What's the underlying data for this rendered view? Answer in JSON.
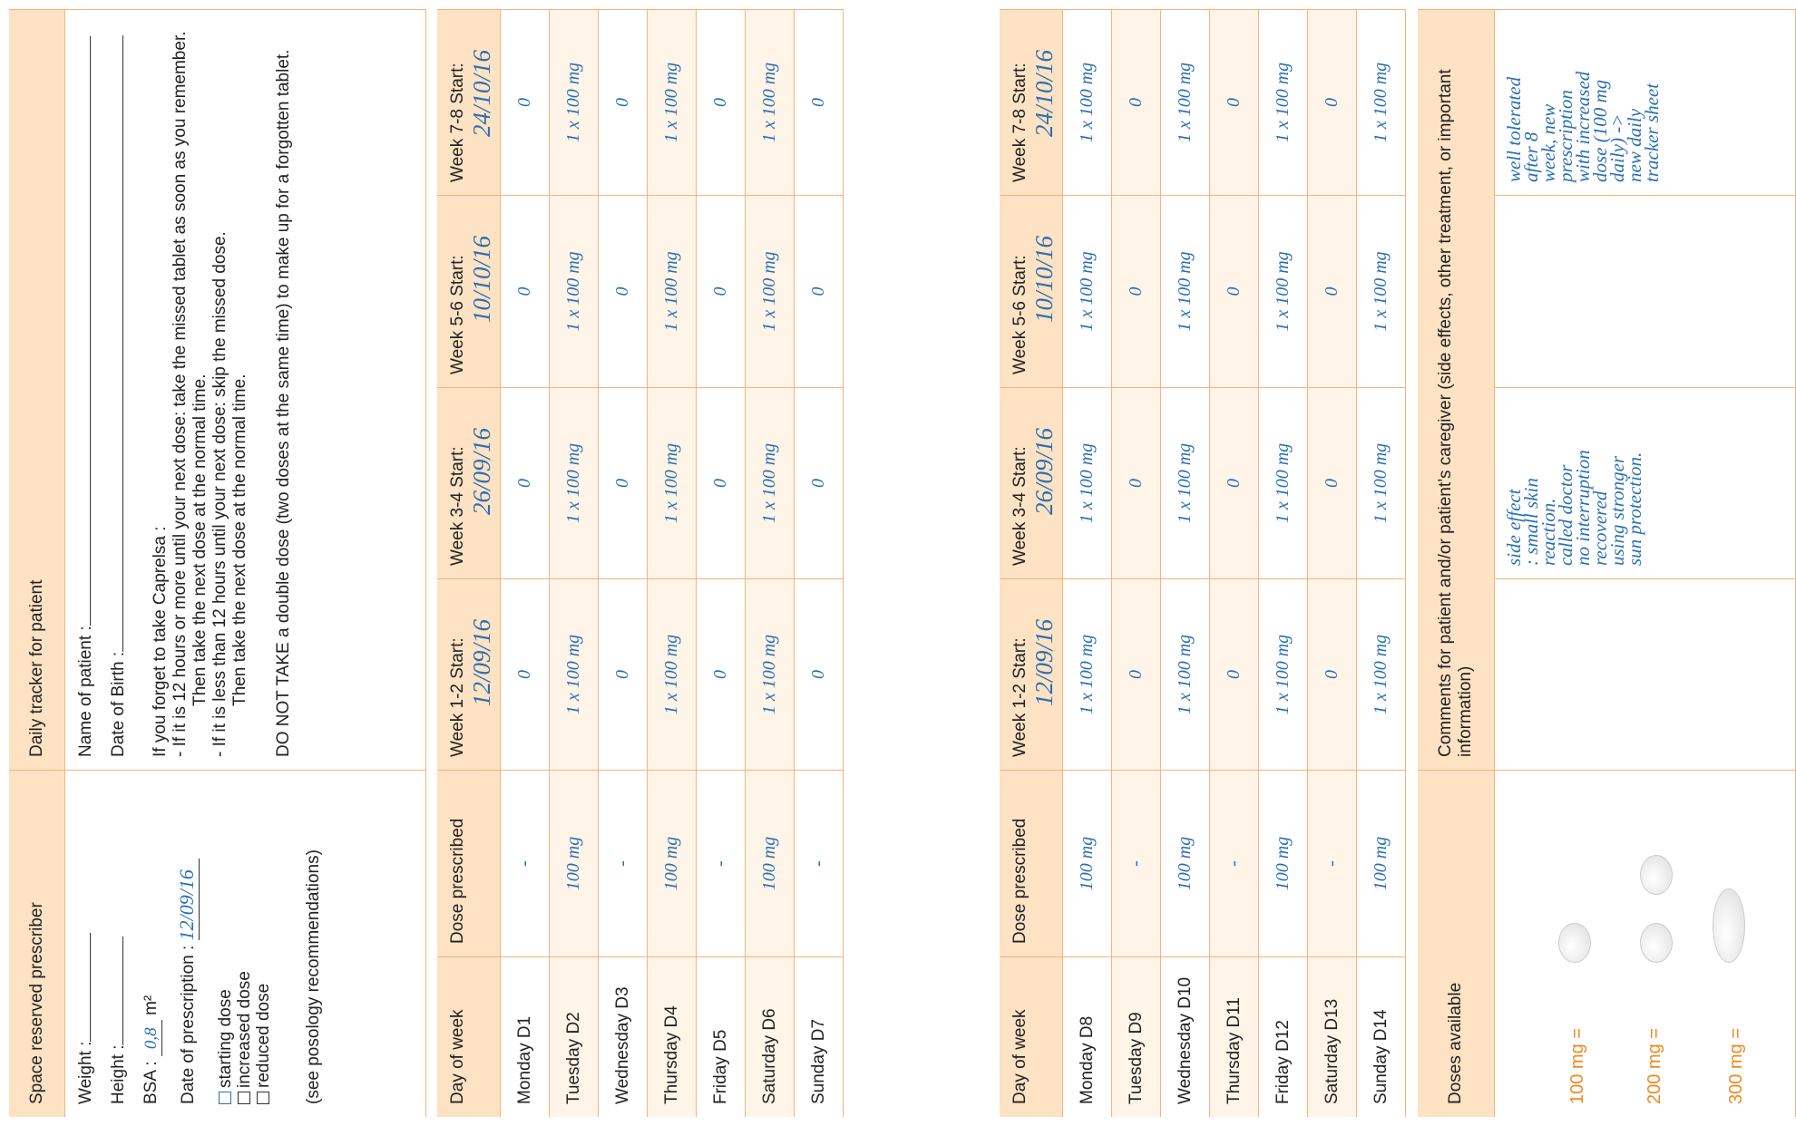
{
  "prescriber": {
    "title": "Space reserved prescriber",
    "weight": "Weight :",
    "height": "Height :",
    "bsa_label": "BSA :",
    "bsa_value": "0,8",
    "bsa_unit": "m²",
    "date_label": "Date of prescription :",
    "date_value": "12/09/16",
    "options": [
      "starting dose",
      "increased dose",
      "reduced dose"
    ],
    "note": "(see posology recommendations)"
  },
  "patient": {
    "title": "Daily tracker for patient",
    "name": "Name of patient :",
    "dob": "Date of Birth :",
    "instructions": [
      "If you forget to take Caprelsa :",
      "- If it is 12 hours or more until your next dose: take the missed tablet as soon as you remember.",
      "Then take the next dose at the normal time.",
      "- If it is less than 12 hours until your next dose: skip the missed dose.",
      "Then take the next dose at the normal time."
    ],
    "warning": "DO NOT TAKE a double dose (two doses at the same time) to make up for a forgotten tablet."
  },
  "tables": [
    {
      "headers": [
        "Day of week",
        "Dose prescribed",
        "Week 1-2 Start:",
        "Week 3-4 Start:",
        "Week 5-6 Start:",
        "Week 7-8 Start:"
      ],
      "starts": [
        "12/09/16",
        "26/09/16",
        "10/10/16",
        "24/10/16"
      ],
      "rows": [
        [
          "Monday D1",
          "-",
          "0",
          "0",
          "0",
          "0"
        ],
        [
          "Tuesday D2",
          "100 mg",
          "1 x 100 mg",
          "1 x 100 mg",
          "1 x 100 mg",
          "1 x 100 mg"
        ],
        [
          "Wednesday D3",
          "-",
          "0",
          "0",
          "0",
          "0"
        ],
        [
          "Thursday D4",
          "100 mg",
          "1 x 100 mg",
          "1 x 100 mg",
          "1 x 100 mg",
          "1 x 100 mg"
        ],
        [
          "Friday D5",
          "-",
          "0",
          "0",
          "0",
          "0"
        ],
        [
          "Saturday D6",
          "100 mg",
          "1 x 100 mg",
          "1 x 100 mg",
          "1 x 100 mg",
          "1 x 100 mg"
        ],
        [
          "Sunday D7",
          "-",
          "0",
          "0",
          "0",
          "0"
        ]
      ]
    },
    {
      "headers": [
        "Day of week",
        "Dose prescribed",
        "Week 1-2 Start:",
        "Week 3-4 Start:",
        "Week 5-6 Start:",
        "Week 7-8 Start:"
      ],
      "starts": [
        "12/09/16",
        "26/09/16",
        "10/10/16",
        "24/10/16"
      ],
      "rows": [
        [
          "Monday D8",
          "100 mg",
          "1 x 100 mg",
          "1 x 100 mg",
          "1 x 100 mg",
          "1 x 100 mg"
        ],
        [
          "Tuesday D9",
          "-",
          "0",
          "0",
          "0",
          "0"
        ],
        [
          "Wednesday D10",
          "100 mg",
          "1 x 100 mg",
          "1 x 100 mg",
          "1 x 100 mg",
          "1 x 100 mg"
        ],
        [
          "Thursday D11",
          "-",
          "0",
          "0",
          "0",
          "0"
        ],
        [
          "Friday D12",
          "100 mg",
          "1 x 100 mg",
          "1 x 100 mg",
          "1 x 100 mg",
          "1 x 100 mg"
        ],
        [
          "Saturday D13",
          "-",
          "0",
          "0",
          "0",
          "0"
        ],
        [
          "Sunday D14",
          "100 mg",
          "1 x 100 mg",
          "1 x 100 mg",
          "1 x 100 mg",
          "1 x 100 mg"
        ]
      ]
    }
  ],
  "doses": {
    "title": "Doses available",
    "items": [
      "100 mg =",
      "200 mg =",
      "300 mg ="
    ]
  },
  "comments": {
    "title": "Comments for patient and/or patient’s caregiver (side effects, other treatment, or important information)",
    "notes": [
      [
        "side effect",
        ": small skin",
        "reaction.",
        "called doctor",
        "no interruption",
        "recovered",
        "using stronger",
        "sun protection."
      ],
      [
        "well tolerated",
        "after 8",
        "week, new",
        "prescription",
        "with increased",
        "dose (100 mg",
        "daily) ->",
        "new daily",
        "tracker sheet"
      ]
    ]
  }
}
